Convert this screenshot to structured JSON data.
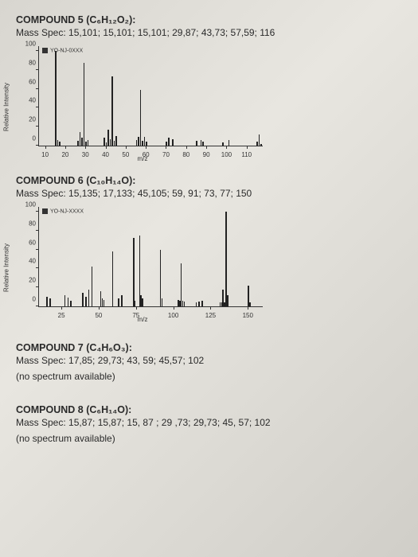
{
  "compound5": {
    "title": "COMPOUND 5 (C₆H₁₂O₂):",
    "massSpec": "Mass Spec: 15,101; 15,101; 15,101; 29,87; 43,73; 57,59; 116",
    "chart": {
      "ylabel": "Relative Intensity",
      "xlabel": "m/z",
      "xlim": [
        7,
        118
      ],
      "ylim": [
        0,
        105
      ],
      "yticks": [
        0,
        20,
        40,
        60,
        80,
        100
      ],
      "xticks": [
        10,
        20,
        30,
        40,
        50,
        60,
        70,
        80,
        90,
        100,
        110
      ],
      "legend": "YO-NJ-0XXX",
      "peakColor": "#222",
      "gridColor": "#333",
      "bg": "transparent",
      "peaks": [
        {
          "mz": 15,
          "h": 100
        },
        {
          "mz": 16,
          "h": 6
        },
        {
          "mz": 17,
          "h": 4
        },
        {
          "mz": 26,
          "h": 5
        },
        {
          "mz": 27,
          "h": 14
        },
        {
          "mz": 28,
          "h": 8
        },
        {
          "mz": 29,
          "h": 87
        },
        {
          "mz": 30,
          "h": 4
        },
        {
          "mz": 31,
          "h": 6
        },
        {
          "mz": 39,
          "h": 8
        },
        {
          "mz": 40,
          "h": 3
        },
        {
          "mz": 41,
          "h": 17
        },
        {
          "mz": 42,
          "h": 7
        },
        {
          "mz": 43,
          "h": 73
        },
        {
          "mz": 44,
          "h": 5
        },
        {
          "mz": 45,
          "h": 10
        },
        {
          "mz": 55,
          "h": 6
        },
        {
          "mz": 56,
          "h": 9
        },
        {
          "mz": 57,
          "h": 59
        },
        {
          "mz": 58,
          "h": 5
        },
        {
          "mz": 59,
          "h": 9
        },
        {
          "mz": 60,
          "h": 4
        },
        {
          "mz": 70,
          "h": 4
        },
        {
          "mz": 71,
          "h": 8
        },
        {
          "mz": 73,
          "h": 7
        },
        {
          "mz": 85,
          "h": 5
        },
        {
          "mz": 87,
          "h": 6
        },
        {
          "mz": 88,
          "h": 4
        },
        {
          "mz": 98,
          "h": 3
        },
        {
          "mz": 101,
          "h": 6
        },
        {
          "mz": 115,
          "h": 4
        },
        {
          "mz": 116,
          "h": 12
        },
        {
          "mz": 117,
          "h": 2
        }
      ]
    }
  },
  "compound6": {
    "title": "COMPOUND 6 (C₁₀H₁₄O):",
    "massSpec": "Mass Spec: 15,135; 17,133; 45,105; 59, 91; 73, 77; 150",
    "chart": {
      "ylabel": "Relative Intensity",
      "xlabel": "m/z",
      "xlim": [
        10,
        160
      ],
      "ylim": [
        0,
        105
      ],
      "yticks": [
        0,
        20,
        40,
        60,
        80,
        100
      ],
      "xticks": [
        25,
        50,
        75,
        100,
        125,
        150
      ],
      "legend": "YO-NJ-XXXX",
      "peakColor": "#222",
      "gridColor": "#333",
      "bg": "transparent",
      "peaks": [
        {
          "mz": 15,
          "h": 10
        },
        {
          "mz": 17,
          "h": 8
        },
        {
          "mz": 27,
          "h": 12
        },
        {
          "mz": 29,
          "h": 9
        },
        {
          "mz": 31,
          "h": 6
        },
        {
          "mz": 39,
          "h": 14
        },
        {
          "mz": 41,
          "h": 10
        },
        {
          "mz": 43,
          "h": 18
        },
        {
          "mz": 45,
          "h": 42
        },
        {
          "mz": 51,
          "h": 16
        },
        {
          "mz": 52,
          "h": 8
        },
        {
          "mz": 53,
          "h": 7
        },
        {
          "mz": 59,
          "h": 58
        },
        {
          "mz": 63,
          "h": 8
        },
        {
          "mz": 65,
          "h": 12
        },
        {
          "mz": 73,
          "h": 72
        },
        {
          "mz": 74,
          "h": 6
        },
        {
          "mz": 77,
          "h": 75
        },
        {
          "mz": 78,
          "h": 12
        },
        {
          "mz": 79,
          "h": 8
        },
        {
          "mz": 91,
          "h": 60
        },
        {
          "mz": 92,
          "h": 8
        },
        {
          "mz": 103,
          "h": 7
        },
        {
          "mz": 104,
          "h": 6
        },
        {
          "mz": 105,
          "h": 45
        },
        {
          "mz": 106,
          "h": 6
        },
        {
          "mz": 107,
          "h": 5
        },
        {
          "mz": 115,
          "h": 4
        },
        {
          "mz": 117,
          "h": 5
        },
        {
          "mz": 119,
          "h": 6
        },
        {
          "mz": 131,
          "h": 4
        },
        {
          "mz": 132,
          "h": 4
        },
        {
          "mz": 133,
          "h": 18
        },
        {
          "mz": 134,
          "h": 4
        },
        {
          "mz": 135,
          "h": 100
        },
        {
          "mz": 136,
          "h": 12
        },
        {
          "mz": 150,
          "h": 22
        },
        {
          "mz": 151,
          "h": 4
        }
      ]
    }
  },
  "compound7": {
    "title": "COMPOUND 7 (C₄H₆O₃):",
    "massSpec": "Mass Spec: 17,85; 29,73; 43, 59; 45,57; 102",
    "note": "(no spectrum available)"
  },
  "compound8": {
    "title": "COMPOUND 8 (C₆H₁₄O):",
    "massSpec": "Mass Spec: 15,87; 15,87; 15, 87 ; 29 ,73; 29,73; 45, 57; 102",
    "note": "(no spectrum available)"
  }
}
